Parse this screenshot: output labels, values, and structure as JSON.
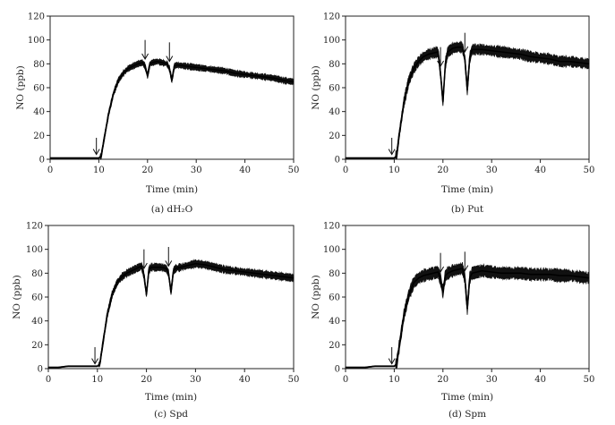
{
  "chart_data": [
    {
      "type": "line",
      "caption": "(a)  dH₂O",
      "xlabel": "Time (min)",
      "ylabel": "NO (ppb)",
      "xlim": [
        0,
        50
      ],
      "ylim": [
        0,
        120
      ],
      "xticks": [
        0,
        10,
        20,
        30,
        40,
        50
      ],
      "yticks": [
        0,
        20,
        40,
        60,
        80,
        100,
        120
      ],
      "xtick_labels": [
        "0",
        "10",
        "20",
        "30",
        "40",
        "50"
      ],
      "ytick_labels": [
        "0",
        "20",
        "40",
        "60",
        "80",
        "100",
        "120"
      ],
      "series": [
        {
          "x": [
            0,
            2,
            4,
            6,
            8,
            10,
            10.5,
            11,
            12,
            13,
            14,
            15,
            16,
            17,
            18,
            19,
            19.5,
            20,
            20.5,
            21,
            22,
            23,
            24,
            24.5,
            25,
            25.5,
            26,
            28,
            30,
            32,
            34,
            36,
            38,
            40,
            42,
            44,
            46,
            48,
            50
          ],
          "y": [
            1,
            1,
            1,
            1,
            1,
            1,
            3,
            15,
            38,
            55,
            66,
            72,
            76,
            78,
            80,
            81,
            78,
            70,
            80,
            81,
            82,
            81,
            80,
            76,
            66,
            78,
            79,
            78,
            77,
            76,
            75,
            74,
            72,
            71,
            70,
            69,
            68,
            66,
            65
          ],
          "band": 4
        }
      ],
      "arrows_x": [
        10,
        20,
        25
      ]
    },
    {
      "type": "line",
      "caption": "(b)  Put",
      "xlabel": "Time (min)",
      "ylabel": "NO (ppb)",
      "xlim": [
        0,
        50
      ],
      "ylim": [
        0,
        120
      ],
      "xticks": [
        0,
        10,
        20,
        30,
        40,
        50
      ],
      "yticks": [
        0,
        20,
        40,
        60,
        80,
        100,
        120
      ],
      "xtick_labels": [
        "0",
        "10",
        "20",
        "30",
        "40",
        "50"
      ],
      "ytick_labels": [
        "0",
        "20",
        "40",
        "60",
        "80",
        "100",
        "120"
      ],
      "series": [
        {
          "x": [
            0,
            2,
            4,
            6,
            8,
            10,
            10.5,
            11,
            12,
            13,
            14,
            15,
            16,
            17,
            18,
            19,
            19.5,
            20,
            20.5,
            21,
            22,
            23,
            24,
            24.5,
            25,
            25.5,
            26,
            28,
            30,
            32,
            34,
            36,
            38,
            40,
            42,
            44,
            46,
            48,
            50
          ],
          "y": [
            1,
            1,
            1,
            1,
            1,
            1,
            3,
            20,
            48,
            66,
            76,
            82,
            86,
            88,
            89,
            90,
            72,
            48,
            80,
            90,
            93,
            94,
            94,
            84,
            58,
            85,
            92,
            92,
            91,
            90,
            89,
            88,
            86,
            85,
            84,
            82,
            82,
            81,
            80
          ],
          "band": 7
        }
      ],
      "arrows_x": [
        10,
        20,
        25
      ]
    },
    {
      "type": "line",
      "caption": "(c)  Spd",
      "xlabel": "Time (min)",
      "ylabel": "NO (ppb)",
      "xlim": [
        0,
        50
      ],
      "ylim": [
        0,
        120
      ],
      "xticks": [
        0,
        10,
        20,
        30,
        40,
        50
      ],
      "yticks": [
        0,
        20,
        40,
        60,
        80,
        100,
        120
      ],
      "xtick_labels": [
        "0",
        "10",
        "20",
        "30",
        "40",
        "50"
      ],
      "ytick_labels": [
        "0",
        "20",
        "40",
        "60",
        "80",
        "100",
        "120"
      ],
      "series": [
        {
          "x": [
            0,
            2,
            4,
            6,
            8,
            10,
            10.5,
            11,
            12,
            13,
            14,
            15,
            16,
            17,
            18,
            19,
            19.5,
            20,
            20.5,
            21,
            22,
            23,
            24,
            24.5,
            25,
            25.5,
            26,
            28,
            30,
            32,
            34,
            36,
            38,
            40,
            42,
            44,
            46,
            48,
            50
          ],
          "y": [
            1,
            1,
            2,
            2,
            2,
            2,
            4,
            18,
            45,
            62,
            72,
            77,
            80,
            82,
            84,
            86,
            78,
            62,
            83,
            85,
            85,
            85,
            84,
            80,
            64,
            82,
            84,
            86,
            88,
            87,
            85,
            83,
            82,
            81,
            80,
            79,
            78,
            77,
            76
          ],
          "band": 5
        }
      ],
      "arrows_x": [
        10,
        20,
        25
      ]
    },
    {
      "type": "line",
      "caption": "(d)  Spm",
      "xlabel": "Time (min)",
      "ylabel": "NO (ppb)",
      "xlim": [
        0,
        50
      ],
      "ylim": [
        0,
        120
      ],
      "xticks": [
        0,
        10,
        20,
        30,
        40,
        50
      ],
      "yticks": [
        0,
        20,
        40,
        60,
        80,
        100,
        120
      ],
      "xtick_labels": [
        "0",
        "10",
        "20",
        "30",
        "40",
        "50"
      ],
      "ytick_labels": [
        "0",
        "20",
        "40",
        "60",
        "80",
        "100",
        "120"
      ],
      "series": [
        {
          "x": [
            0,
            2,
            4,
            6,
            8,
            10,
            10.5,
            11,
            12,
            13,
            14,
            15,
            16,
            17,
            18,
            19,
            19.5,
            20,
            20.5,
            21,
            22,
            23,
            24,
            24.5,
            25,
            25.5,
            26,
            28,
            30,
            32,
            34,
            36,
            38,
            40,
            42,
            44,
            46,
            48,
            50
          ],
          "y": [
            1,
            1,
            1,
            2,
            2,
            2,
            4,
            18,
            45,
            62,
            72,
            76,
            78,
            79,
            80,
            81,
            75,
            64,
            78,
            80,
            82,
            83,
            84,
            76,
            50,
            76,
            80,
            82,
            81,
            80,
            80,
            80,
            79,
            79,
            79,
            78,
            78,
            77,
            76
          ],
          "band": 8
        }
      ],
      "arrows_x": [
        10,
        20,
        25
      ]
    }
  ]
}
